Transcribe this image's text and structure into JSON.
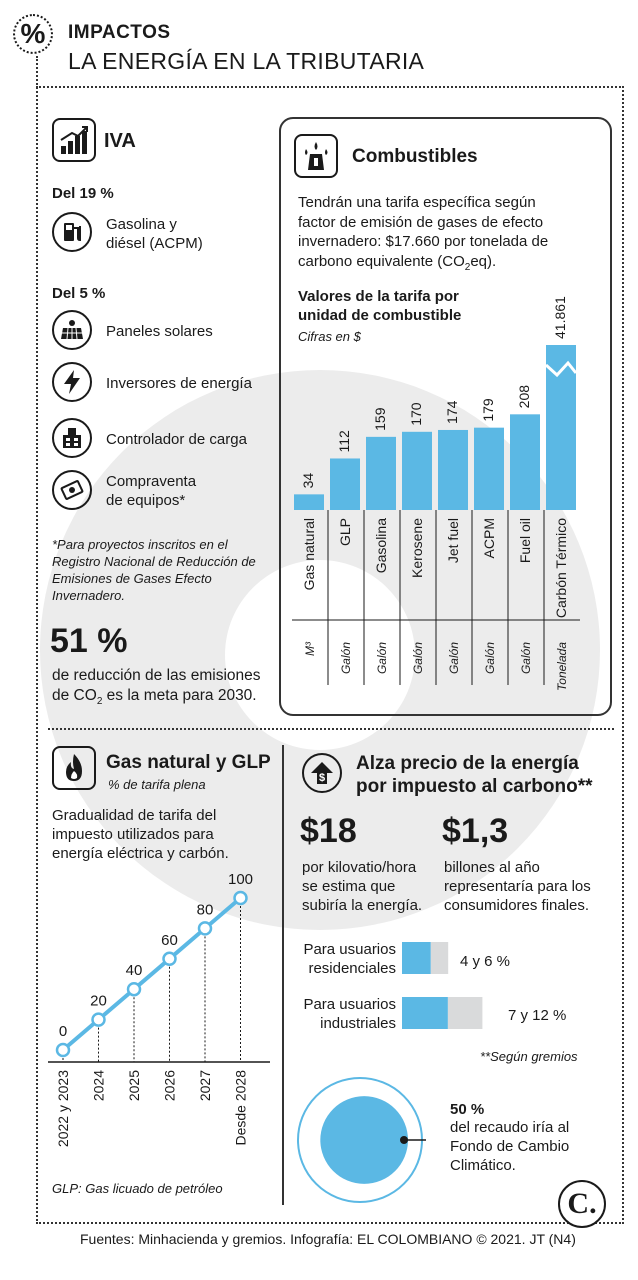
{
  "header": {
    "kicker": "IMPACTOS",
    "title": "LA ENERGÍA EN LA TRIBUTARIA",
    "badge": "%"
  },
  "iva": {
    "title": "IVA",
    "group1_label": "Del 19 %",
    "group1_items": [
      {
        "label": "Gasolina y\ndiésel (ACPM)",
        "icon": "fuel-pump-icon"
      }
    ],
    "group2_label": "Del 5 %",
    "group2_items": [
      {
        "label": "Paneles solares",
        "icon": "solar-panel-icon"
      },
      {
        "label": "Inversores de energía",
        "icon": "lightning-icon"
      },
      {
        "label": "Controlador de carga",
        "icon": "charge-controller-icon"
      },
      {
        "label": "Compraventa\nde equipos*",
        "icon": "money-exchange-icon"
      }
    ],
    "footnote": "*Para proyectos inscritos en el Registro Nacional de Reducción de Emisiones de Gases Efecto Invernadero.",
    "stat_value": "51 %",
    "stat_text_1": "de reducción de las emisiones",
    "stat_text_2a": "de CO",
    "stat_text_2sub": "2",
    "stat_text_2b": " es la meta para 2030."
  },
  "combustibles": {
    "title": "Combustibles",
    "intro_1": "Tendrán una tarifa específica según",
    "intro_2": "factor de emisión de gases de efecto",
    "intro_3": "invernadero: $17.660 por tonelada de",
    "intro_4a": "carbono equivalente (CO",
    "intro_4sub": "2",
    "intro_4b": "eq).",
    "chart_title_1": "Valores de la tarifa por",
    "chart_title_2": "unidad de combustible",
    "chart_subtitle": "Cifras en $"
  },
  "gas": {
    "title": "Gas natural y GLP",
    "subtitle": "% de tarifa plena",
    "desc": "Gradualidad de tarifa del impuesto utilizados para energía eléctrica y carbón.",
    "footnote": "GLP: Gas licuado de petróleo"
  },
  "alza": {
    "title_1": "Alza precio de la energía",
    "title_2": "por impuesto al carbono**",
    "stat1_value": "$18",
    "stat1_text": "por kilovatio/hora se estima que subiría la energía.",
    "stat2_value": "$1,3",
    "stat2_text": "billones al año representaría para los consumidores finales.",
    "users": [
      {
        "label": "Para usuarios\nresidenciales",
        "range": "4 y 6 %",
        "low": 4,
        "high": 6
      },
      {
        "label": "Para usuarios\nindustriales",
        "range": "7 y 12 %",
        "low": 7,
        "high": 12
      }
    ],
    "users_note": "**Según gremios",
    "fund_value": "50 %",
    "fund_fraction": 0.5,
    "fund_text": "del recaudo iría al Fondo de Cambio Climático."
  },
  "footer": {
    "source": "Fuentes: Minhacienda y gremios. Infografía: EL COLOMBIANO © 2021. JT (N4)",
    "logo": "C."
  },
  "colors": {
    "accent": "#5bb8e4",
    "grey": "#d9dadb",
    "ink": "#1a1a1a"
  },
  "chart_data": [
    {
      "type": "bar",
      "title": "Valores de la tarifa por unidad de combustible",
      "subtitle": "Cifras en $",
      "categories": [
        "Gas natural",
        "GLP",
        "Gasolina",
        "Kerosene",
        "Jet fuel",
        "ACPM",
        "Fuel oil",
        "Carbón Térmico"
      ],
      "units": [
        "M³",
        "Galón",
        "Galón",
        "Galón",
        "Galón",
        "Galón",
        "Galón",
        "Tonelada"
      ],
      "values": [
        34,
        112,
        159,
        170,
        174,
        179,
        208,
        41861
      ],
      "value_labels": [
        "34",
        "112",
        "159",
        "170",
        "174",
        "179",
        "208",
        "41.861"
      ],
      "broken_axis": true
    },
    {
      "type": "line",
      "title": "Gas natural y GLP",
      "subtitle": "% de tarifa plena",
      "categories": [
        "2022 y 2023",
        "2024",
        "2025",
        "2026",
        "2027",
        "Desde 2028"
      ],
      "values": [
        0,
        20,
        40,
        60,
        80,
        100
      ],
      "ylim": [
        0,
        100
      ]
    }
  ]
}
